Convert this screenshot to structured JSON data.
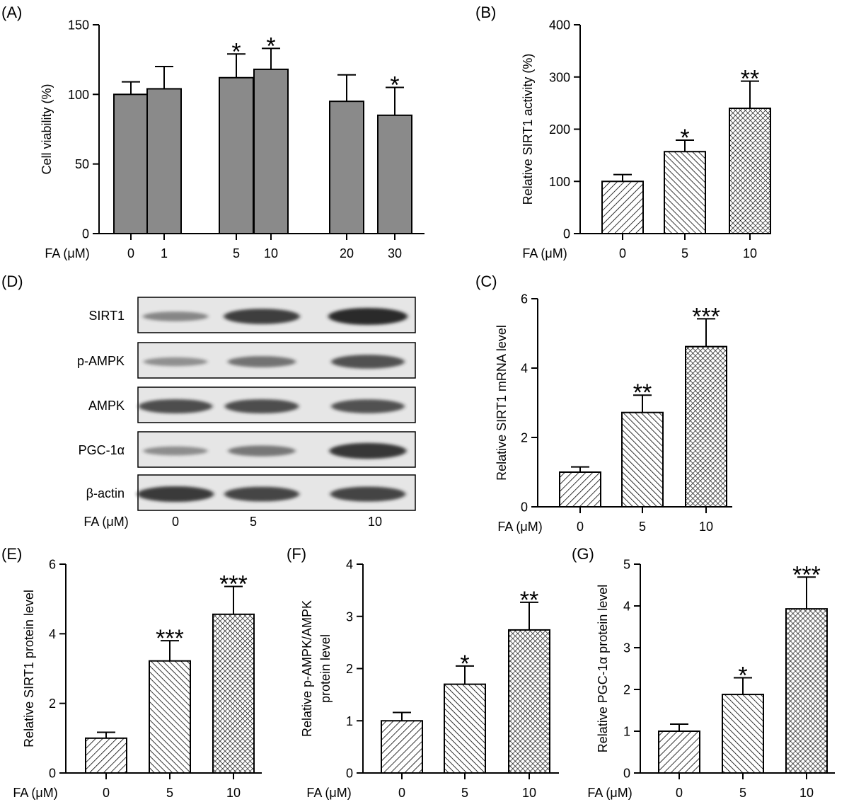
{
  "colors": {
    "solid_bar": "#8a8a8a",
    "axis": "#000000",
    "hatch": "#000000",
    "blot_background": "#e6e6e6",
    "band": "#2a2a2a"
  },
  "chart_data": [
    {
      "panel": "(A)",
      "type": "bar",
      "bar_style": "solid-gray",
      "xlabel": "FA (μM)",
      "ylabel": "Cell viability (%)",
      "ylim": [
        0,
        150
      ],
      "yticks": [
        "0",
        "50",
        "100",
        "150"
      ],
      "categories": [
        "0",
        "1",
        "5",
        "10",
        "20",
        "30"
      ],
      "values": [
        100,
        104,
        112,
        118,
        95,
        85
      ],
      "errors": [
        9,
        16,
        17,
        15,
        19,
        20
      ],
      "significance": [
        "",
        "",
        "*",
        "*",
        "",
        "*"
      ]
    },
    {
      "panel": "(B)",
      "type": "bar",
      "bar_style": "hatched",
      "xlabel": "FA (μM)",
      "ylabel": "Relative SIRT1 activity (%)",
      "ylim": [
        0,
        400
      ],
      "yticks": [
        "0",
        "100",
        "200",
        "300",
        "400"
      ],
      "categories": [
        "0",
        "5",
        "10"
      ],
      "values": [
        100,
        157,
        240
      ],
      "errors": [
        13,
        22,
        52
      ],
      "significance": [
        "",
        "*",
        "**"
      ]
    },
    {
      "panel": "(C)",
      "type": "bar",
      "bar_style": "hatched",
      "xlabel": "FA (μM)",
      "ylabel": "Relative SIRT1 mRNA level",
      "ylim": [
        0,
        6
      ],
      "yticks": [
        "0",
        "2",
        "4",
        "6"
      ],
      "categories": [
        "0",
        "5",
        "10"
      ],
      "values": [
        1.0,
        2.72,
        4.62
      ],
      "errors": [
        0.15,
        0.5,
        0.8
      ],
      "significance": [
        "",
        "**",
        "***"
      ]
    },
    {
      "panel": "(E)",
      "type": "bar",
      "bar_style": "hatched",
      "xlabel": "FA (μM)",
      "ylabel": "Relative SIRT1 protein level",
      "ylim": [
        0,
        6
      ],
      "yticks": [
        "0",
        "2",
        "4",
        "6"
      ],
      "categories": [
        "0",
        "5",
        "10"
      ],
      "values": [
        1.0,
        3.22,
        4.56
      ],
      "errors": [
        0.17,
        0.58,
        0.8
      ],
      "significance": [
        "",
        "***",
        "***"
      ]
    },
    {
      "panel": "(F)",
      "type": "bar",
      "bar_style": "hatched",
      "xlabel": "FA (μM)",
      "ylabel": [
        "Relative p-AMPK/AMPK",
        "protein level"
      ],
      "ylim": [
        0,
        4
      ],
      "yticks": [
        "0",
        "1",
        "2",
        "3",
        "4"
      ],
      "categories": [
        "0",
        "5",
        "10"
      ],
      "values": [
        1.0,
        1.7,
        2.74
      ],
      "errors": [
        0.16,
        0.35,
        0.53
      ],
      "significance": [
        "",
        "*",
        "**"
      ]
    },
    {
      "panel": "(G)",
      "type": "bar",
      "bar_style": "hatched",
      "xlabel": "FA (μM)",
      "ylabel": "Relative PGC-1α protein level",
      "ylim": [
        0,
        5
      ],
      "yticks": [
        "0",
        "1",
        "2",
        "3",
        "4",
        "5"
      ],
      "categories": [
        "0",
        "5",
        "10"
      ],
      "values": [
        1.0,
        1.88,
        3.93
      ],
      "errors": [
        0.17,
        0.4,
        0.76
      ],
      "significance": [
        "",
        "*",
        "***"
      ]
    }
  ],
  "blot": {
    "panel": "(D)",
    "xlabel": "FA (μM)",
    "lanes": [
      "0",
      "5",
      "10"
    ],
    "rows": [
      {
        "label": "SIRT1",
        "intensity": [
          0.35,
          0.85,
          1.0
        ]
      },
      {
        "label": "p-AMPK",
        "intensity": [
          0.28,
          0.48,
          0.72
        ]
      },
      {
        "label": "AMPK",
        "intensity": [
          0.75,
          0.75,
          0.72
        ]
      },
      {
        "label": "PGC-1α",
        "intensity": [
          0.3,
          0.45,
          0.9
        ]
      },
      {
        "label": "β-actin",
        "intensity": [
          0.88,
          0.8,
          0.82
        ]
      }
    ]
  }
}
